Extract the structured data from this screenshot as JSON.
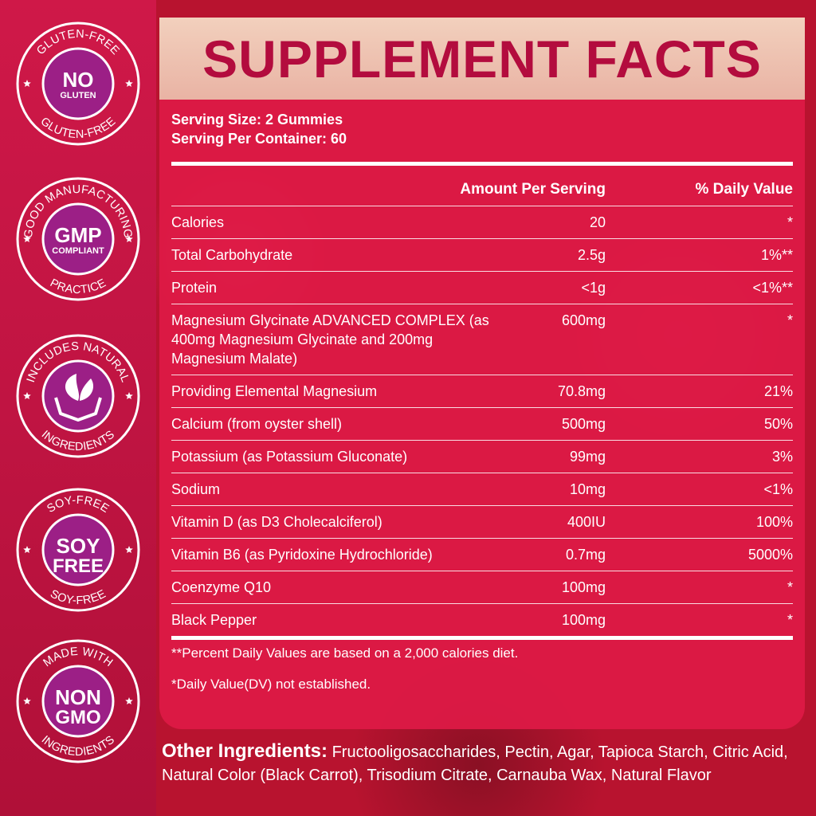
{
  "badges": [
    {
      "top": "GLUTEN-FREE",
      "center": [
        "NO",
        "GLUTEN"
      ],
      "bottom": "GLUTEN-FREE"
    },
    {
      "top": "GOOD MANUFACTURING",
      "center": [
        "GMP",
        "COMPLIANT"
      ],
      "bottom": "PRACTICE"
    },
    {
      "top": "INCLUDES NATURAL",
      "center": [],
      "bottom": "INGREDIENTS"
    },
    {
      "top": "SOY-FREE",
      "center": [
        "SOY",
        "FREE"
      ],
      "bottom": "SOY-FREE"
    },
    {
      "top": "MADE WITH",
      "center": [
        "NON",
        "GMO"
      ],
      "bottom": "INGREDIENTS"
    }
  ],
  "title": "SUPPLEMENT FACTS",
  "serving": [
    "Serving Size: 2 Gummies",
    "Serving Per Container: 60"
  ],
  "table": {
    "header": [
      "Amount Per Serving",
      "% Daily Value"
    ],
    "rows": [
      [
        "Calories",
        "20",
        "*"
      ],
      [
        "Total Carbohydrate",
        "2.5g",
        "1%**"
      ],
      [
        "Protein",
        "<1g",
        "<1%**"
      ],
      [
        "Magnesium Glycinate ADVANCED COMPLEX (as 400mg Magnesium Glycinate and 200mg Magnesium Malate)",
        "600mg",
        "*"
      ],
      [
        "Providing Elemental Magnesium",
        "70.8mg",
        "21%"
      ],
      [
        "Calcium (from oyster shell)",
        "500mg",
        "50%"
      ],
      [
        "Potassium (as Potassium Gluconate)",
        "99mg",
        "3%"
      ],
      [
        "Sodium",
        "10mg",
        "<1%"
      ],
      [
        "Vitamin D (as D3 Cholecalciferol)",
        "400IU",
        "100%"
      ],
      [
        "Vitamin B6 (as Pyridoxine Hydrochloride)",
        "0.7mg",
        "5000%"
      ],
      [
        "Coenzyme Q10",
        "100mg",
        "*"
      ],
      [
        "Black Pepper",
        "100mg",
        "*"
      ]
    ]
  },
  "footnotes": [
    "**Percent Daily Values are based on a 2,000 calories diet.",
    "*Daily Value(DV) not established."
  ],
  "other_ingredients": {
    "label": "Other Ingredients:",
    "text": "Fructooligosaccharides, Pectin, Agar, Tapioca Starch, Citric Acid, Natural Color (Black Carrot), Trisodium Citrate, Carnauba Wax, Natural Flavor"
  }
}
